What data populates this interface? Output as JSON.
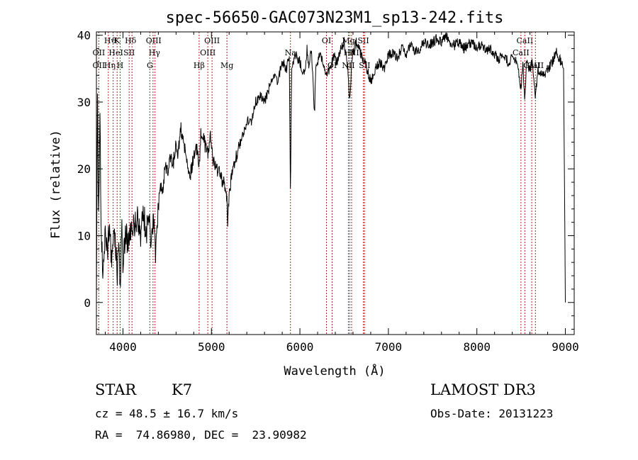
{
  "chart_data": {
    "type": "line",
    "title": "spec-56650-GAC073N23M1_sp13-242.fits",
    "xlabel": "Wavelength (Å)",
    "ylabel": "Flux (relative)",
    "xlim": [
      3700,
      9100
    ],
    "ylim": [
      -4.8,
      40.5
    ],
    "xticks": [
      4000,
      5000,
      6000,
      7000,
      8000,
      9000
    ],
    "yticks": [
      0,
      10,
      20,
      30,
      40
    ],
    "series_color": "#000000",
    "marker_color": "#b22222",
    "anchors": [
      [
        3700,
        0
      ],
      [
        3712,
        33
      ],
      [
        3725,
        10
      ],
      [
        3740,
        30
      ],
      [
        3752,
        12
      ],
      [
        3770,
        5
      ],
      [
        3800,
        11
      ],
      [
        3830,
        8
      ],
      [
        3850,
        13
      ],
      [
        3870,
        6
      ],
      [
        3890,
        11
      ],
      [
        3910,
        9
      ],
      [
        3935,
        4
      ],
      [
        3950,
        10
      ],
      [
        3970,
        2
      ],
      [
        3985,
        12
      ],
      [
        4000,
        6
      ],
      [
        4030,
        11
      ],
      [
        4060,
        8
      ],
      [
        4100,
        12
      ],
      [
        4130,
        11
      ],
      [
        4160,
        13
      ],
      [
        4200,
        9
      ],
      [
        4230,
        14
      ],
      [
        4260,
        10
      ],
      [
        4290,
        13
      ],
      [
        4320,
        9
      ],
      [
        4345,
        12
      ],
      [
        4370,
        7
      ],
      [
        4400,
        14
      ],
      [
        4420,
        18
      ],
      [
        4450,
        17
      ],
      [
        4480,
        21
      ],
      [
        4510,
        19
      ],
      [
        4540,
        22
      ],
      [
        4570,
        21
      ],
      [
        4600,
        24
      ],
      [
        4620,
        22
      ],
      [
        4650,
        26
      ],
      [
        4680,
        25
      ],
      [
        4720,
        21
      ],
      [
        4760,
        19
      ],
      [
        4800,
        22
      ],
      [
        4840,
        23
      ],
      [
        4860,
        20
      ],
      [
        4880,
        25
      ],
      [
        4920,
        24
      ],
      [
        4960,
        22
      ],
      [
        4990,
        25
      ],
      [
        5020,
        21
      ],
      [
        5060,
        20
      ],
      [
        5100,
        19
      ],
      [
        5140,
        18
      ],
      [
        5170,
        17
      ],
      [
        5184,
        12
      ],
      [
        5200,
        16
      ],
      [
        5230,
        19
      ],
      [
        5260,
        21
      ],
      [
        5300,
        23
      ],
      [
        5350,
        25
      ],
      [
        5400,
        27
      ],
      [
        5450,
        27
      ],
      [
        5500,
        30
      ],
      [
        5550,
        31
      ],
      [
        5600,
        30
      ],
      [
        5650,
        32
      ],
      [
        5700,
        34
      ],
      [
        5750,
        33
      ],
      [
        5800,
        36
      ],
      [
        5850,
        35
      ],
      [
        5880,
        37
      ],
      [
        5893,
        15
      ],
      [
        5906,
        35
      ],
      [
        5950,
        37
      ],
      [
        6000,
        36
      ],
      [
        6050,
        34
      ],
      [
        6080,
        38
      ],
      [
        6100,
        35
      ],
      [
        6130,
        38
      ],
      [
        6150,
        33
      ],
      [
        6165,
        28
      ],
      [
        6180,
        35
      ],
      [
        6220,
        37
      ],
      [
        6260,
        36
      ],
      [
        6300,
        34
      ],
      [
        6340,
        35
      ],
      [
        6380,
        37
      ],
      [
        6420,
        36
      ],
      [
        6460,
        38
      ],
      [
        6500,
        39
      ],
      [
        6540,
        35
      ],
      [
        6563,
        30
      ],
      [
        6590,
        37
      ],
      [
        6640,
        39
      ],
      [
        6700,
        37
      ],
      [
        6760,
        35
      ],
      [
        6800,
        33
      ],
      [
        6850,
        35
      ],
      [
        6900,
        36
      ],
      [
        6950,
        35
      ],
      [
        7000,
        37
      ],
      [
        7050,
        37.5
      ],
      [
        7100,
        36.5
      ],
      [
        7150,
        38
      ],
      [
        7200,
        37
      ],
      [
        7250,
        38.5
      ],
      [
        7300,
        37.5
      ],
      [
        7350,
        38
      ],
      [
        7400,
        39
      ],
      [
        7450,
        38.5
      ],
      [
        7500,
        39
      ],
      [
        7550,
        39.5
      ],
      [
        7600,
        39
      ],
      [
        7650,
        40
      ],
      [
        7700,
        39
      ],
      [
        7750,
        38.5
      ],
      [
        7800,
        39
      ],
      [
        7850,
        38
      ],
      [
        7900,
        38.5
      ],
      [
        7950,
        39
      ],
      [
        8000,
        38
      ],
      [
        8050,
        38.5
      ],
      [
        8100,
        37.5
      ],
      [
        8150,
        38
      ],
      [
        8200,
        37
      ],
      [
        8250,
        36.5
      ],
      [
        8300,
        37
      ],
      [
        8350,
        36
      ],
      [
        8400,
        36.5
      ],
      [
        8450,
        36
      ],
      [
        8498,
        32
      ],
      [
        8520,
        36
      ],
      [
        8542,
        30
      ],
      [
        8560,
        36
      ],
      [
        8600,
        35
      ],
      [
        8630,
        36
      ],
      [
        8662,
        31
      ],
      [
        8690,
        35
      ],
      [
        8750,
        34
      ],
      [
        8800,
        35
      ],
      [
        8850,
        36
      ],
      [
        8900,
        37.5
      ],
      [
        8950,
        36
      ],
      [
        8980,
        35
      ],
      [
        8995,
        10
      ],
      [
        9000,
        0
      ]
    ],
    "lines": [
      {
        "name": "Hδ",
        "x": 4102,
        "row": 0,
        "dx": -2
      },
      {
        "name": "K",
        "x": 3934,
        "row": 0,
        "dx": 0
      },
      {
        "name": "Hϑ",
        "x": 3889,
        "row": 0,
        "dx": -4
      },
      {
        "name": "OIII",
        "x": 4363,
        "row": 0,
        "dx": -2
      },
      {
        "name": "OIII",
        "x": 5007,
        "row": 0,
        "dx": 0
      },
      {
        "name": "OI",
        "x": 6300,
        "row": 0,
        "dx": 0
      },
      {
        "name": "Mg",
        "x": 6548,
        "row": 0,
        "dx": 0
      },
      {
        "name": "SII",
        "x": 6717,
        "row": 0,
        "dx": 0
      },
      {
        "name": "CaII",
        "x": 8542,
        "row": 0,
        "dx": 0
      },
      {
        "name": "OII",
        "x": 3727,
        "row": 1,
        "dx": 0
      },
      {
        "name": "HeI",
        "x": 3889,
        "row": 1,
        "dx": 4
      },
      {
        "name": "SII",
        "x": 4070,
        "row": 1,
        "dx": 0
      },
      {
        "name": "Hγ",
        "x": 4340,
        "row": 1,
        "dx": 2
      },
      {
        "name": "OIII",
        "x": 4959,
        "row": 1,
        "dx": 0
      },
      {
        "name": "Na",
        "x": 5893,
        "row": 1,
        "dx": 0
      },
      {
        "name": "Hα",
        "x": 6563,
        "row": 1,
        "dx": 0
      },
      {
        "name": "NII",
        "x": 6584,
        "row": 1,
        "dx": 6
      },
      {
        "name": "CaII",
        "x": 8498,
        "row": 1,
        "dx": 0
      },
      {
        "name": "OII",
        "x": 3727,
        "row": 2,
        "dx": 0
      },
      {
        "name": "Hη",
        "x": 3835,
        "row": 2,
        "dx": 2
      },
      {
        "name": "H",
        "x": 3968,
        "row": 2,
        "dx": 0
      },
      {
        "name": "G",
        "x": 4304,
        "row": 2,
        "dx": 0
      },
      {
        "name": "Hβ",
        "x": 4861,
        "row": 2,
        "dx": 0
      },
      {
        "name": "Mg",
        "x": 5175,
        "row": 2,
        "dx": 0
      },
      {
        "name": "OI",
        "x": 6364,
        "row": 2,
        "dx": 0
      },
      {
        "name": "NII",
        "x": 6548,
        "row": 2,
        "dx": 0
      },
      {
        "name": "SII",
        "x": 6731,
        "row": 2,
        "dx": 0
      },
      {
        "name": "CaII",
        "x": 8662,
        "row": 2,
        "dx": 0
      },
      {
        "name": "CaII",
        "x": 8620,
        "row": 2,
        "dx": 0
      }
    ]
  },
  "info": {
    "class_label": "STAR",
    "subclass": "K7",
    "survey": "LAMOST DR3",
    "redshift": "cz = 48.5 ± 16.7 km/s",
    "obs_date": "Obs-Date: 20131223",
    "coords": "RA =  74.86980, DEC =  23.90982"
  }
}
